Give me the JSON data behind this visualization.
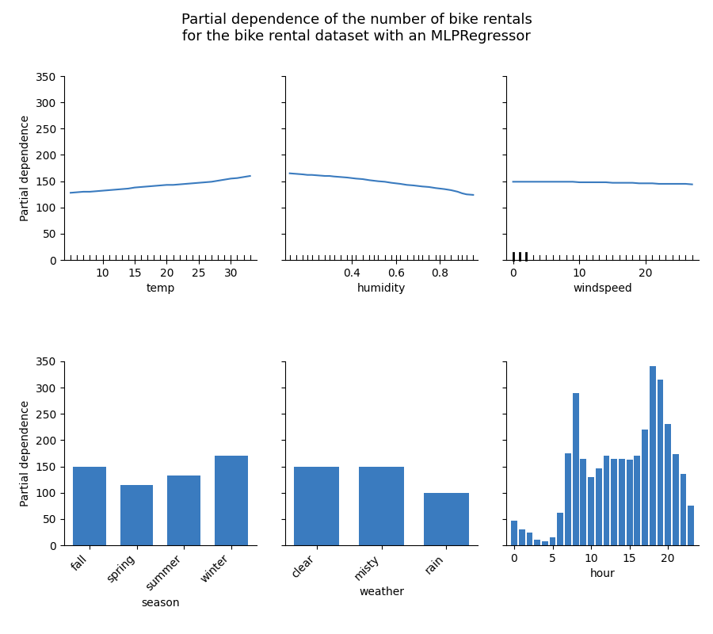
{
  "title": "Partial dependence of the number of bike rentals\nfor the bike rental dataset with an MLPRegressor",
  "title_fontsize": 13,
  "line_color": "#3a7bbf",
  "bar_color": "#3a7bbf",
  "ylabel": "Partial dependence",
  "ylim": [
    0,
    350
  ],
  "yticks": [
    0,
    50,
    100,
    150,
    200,
    250,
    300,
    350
  ],
  "temp_x": [
    5,
    6,
    7,
    8,
    9,
    10,
    11,
    12,
    13,
    14,
    15,
    16,
    17,
    18,
    19,
    20,
    21,
    22,
    23,
    24,
    25,
    26,
    27,
    28,
    29,
    30,
    31,
    32,
    33
  ],
  "temp_y": [
    128,
    129,
    130,
    130,
    131,
    132,
    133,
    134,
    135,
    136,
    138,
    139,
    140,
    141,
    142,
    143,
    143,
    144,
    145,
    146,
    147,
    148,
    149,
    151,
    153,
    155,
    156,
    158,
    160
  ],
  "temp_xlabel": "temp",
  "temp_xlim": [
    4,
    34
  ],
  "temp_xticks": [
    10,
    15,
    20,
    25,
    30
  ],
  "humidity_x": [
    0.12,
    0.15,
    0.18,
    0.2,
    0.22,
    0.25,
    0.28,
    0.3,
    0.32,
    0.35,
    0.38,
    0.4,
    0.42,
    0.45,
    0.48,
    0.5,
    0.52,
    0.55,
    0.58,
    0.6,
    0.62,
    0.65,
    0.68,
    0.7,
    0.72,
    0.75,
    0.78,
    0.8,
    0.82,
    0.85,
    0.88,
    0.9,
    0.92,
    0.95
  ],
  "humidity_y": [
    165,
    164,
    163,
    162,
    162,
    161,
    160,
    160,
    159,
    158,
    157,
    156,
    155,
    154,
    152,
    151,
    150,
    149,
    147,
    146,
    145,
    143,
    142,
    141,
    140,
    139,
    137,
    136,
    135,
    133,
    130,
    127,
    125,
    124
  ],
  "humidity_xlabel": "humidity",
  "humidity_xlim": [
    0.1,
    0.97
  ],
  "humidity_xticks": [
    0.4,
    0.6,
    0.8
  ],
  "windspeed_x": [
    0,
    1,
    2,
    3,
    4,
    5,
    6,
    7,
    8,
    9,
    10,
    11,
    12,
    13,
    14,
    15,
    16,
    17,
    18,
    19,
    20,
    21,
    22,
    23,
    24,
    25,
    26,
    27
  ],
  "windspeed_y": [
    149,
    149,
    149,
    149,
    149,
    149,
    149,
    149,
    149,
    149,
    148,
    148,
    148,
    148,
    148,
    147,
    147,
    147,
    147,
    146,
    146,
    146,
    145,
    145,
    145,
    145,
    145,
    144
  ],
  "windspeed_xlabel": "windspeed",
  "windspeed_xlim": [
    -1,
    28
  ],
  "windspeed_xticks": [
    0,
    10,
    20
  ],
  "windspeed_rug_thick": [
    0,
    1,
    2
  ],
  "season_categories": [
    "fall",
    "spring",
    "summer",
    "winter"
  ],
  "season_values": [
    150,
    114,
    133,
    170
  ],
  "season_xlabel": "season",
  "weather_categories": [
    "clear",
    "misty",
    "rain"
  ],
  "weather_values": [
    150,
    149,
    99
  ],
  "weather_xlabel": "weather",
  "hour_x": [
    0,
    1,
    2,
    3,
    4,
    5,
    6,
    7,
    8,
    9,
    10,
    11,
    12,
    13,
    14,
    15,
    16,
    17,
    18,
    19,
    20,
    21,
    22,
    23
  ],
  "hour_y": [
    46,
    30,
    24,
    10,
    7,
    15,
    62,
    175,
    290,
    165,
    130,
    146,
    170,
    165,
    165,
    163,
    170,
    220,
    340,
    315,
    230,
    173,
    135,
    75
  ],
  "hour_xlabel": "hour",
  "hour_xticks": [
    0,
    5,
    10,
    15,
    20
  ]
}
